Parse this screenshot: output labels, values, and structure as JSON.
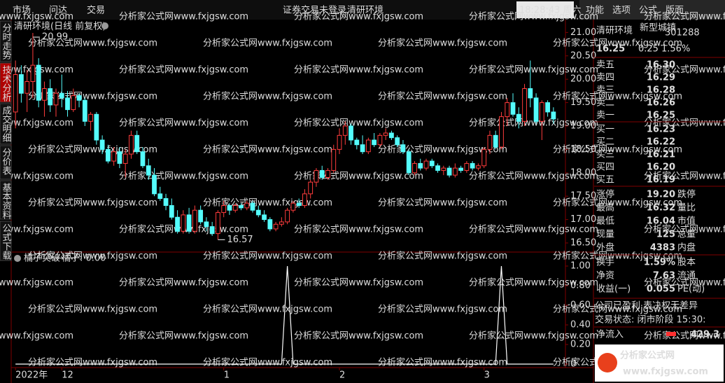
{
  "ui": {
    "menu_left": [
      "市场",
      "问达",
      "交易"
    ],
    "status": [
      "证券交易未登录",
      "清研环境"
    ],
    "clock": "18:28:43 周六",
    "menu_right": [
      "功能",
      "选项",
      "公式",
      "版面"
    ],
    "side_tabs": [
      "分时走势",
      "技术分析",
      "成交明细",
      "分价表",
      "基本资料",
      "公式下载"
    ],
    "watermark": "分析家公式网www.fxjgsw.com",
    "logo": {
      "name": "分析家公式网",
      "url": "www.fxjgsw.com"
    }
  },
  "quote": {
    "name": "清研环境",
    "sector": "新型城镇",
    "code": "301288",
    "price": "16.25",
    "change": "0.25",
    "pct": "1.56%",
    "asks": [
      {
        "label": "卖五",
        "price": "16.30"
      },
      {
        "label": "卖四",
        "price": "16.29"
      },
      {
        "label": "卖三",
        "price": "16.28"
      },
      {
        "label": "卖二",
        "price": "16.26"
      },
      {
        "label": "卖一",
        "price": "16.25"
      }
    ],
    "bids": [
      {
        "label": "买一",
        "price": "16.23"
      },
      {
        "label": "买二",
        "price": "16.22"
      },
      {
        "label": "买三",
        "price": "16.21"
      },
      {
        "label": "买四",
        "price": "16.20"
      },
      {
        "label": "买五",
        "price": "16.19"
      }
    ],
    "stats": [
      {
        "label": "涨停",
        "value": "19.20",
        "tail": "跌停",
        "color": "#ff4040"
      },
      {
        "label": "最高",
        "value": "16.32",
        "tail": "量比",
        "color": "#ff4040"
      },
      {
        "label": "最低",
        "value": "16.04",
        "tail": "市值",
        "color": "#ff4040"
      },
      {
        "label": "现量",
        "value": "125",
        "tail": "总量",
        "color": "#ffffff"
      },
      {
        "label": "外盘",
        "value": "4383",
        "tail": "内盘",
        "color": "#ff4040"
      },
      {
        "label": "换手",
        "value": "1.59%",
        "tail": "股本",
        "color": "#ffffff"
      },
      {
        "label": "净资",
        "value": "7.63",
        "tail": "流通",
        "color": "#ffffff"
      },
      {
        "label": "收益(一)",
        "value": "0.055",
        "tail": "PE(动)",
        "color": "#ffffff"
      }
    ],
    "notes": [
      "公司已盈利 表决权无差异",
      "交易状态: 闭市阶段 15:30:"
    ],
    "flow": {
      "label": "净流入",
      "value": "429.3"
    }
  },
  "chart_data": [
    {
      "type": "candlestick",
      "title": "清研环境(日线 前复权)",
      "color_up": "#ff3c3c",
      "color_down": "#54fcfc",
      "categories": [
        "2022年",
        null,
        null,
        null,
        null,
        null,
        null,
        null,
        "12",
        null,
        null,
        null,
        null,
        null,
        null,
        null,
        null,
        null,
        null,
        null,
        null,
        null,
        null,
        null,
        null,
        null,
        null,
        null,
        null,
        null,
        null,
        null,
        null,
        null,
        null,
        null,
        "1",
        null,
        null,
        null,
        null,
        null,
        null,
        null,
        null,
        null,
        null,
        null,
        null,
        null,
        null,
        null,
        null,
        null,
        null,
        null,
        "2",
        null,
        null,
        null,
        null,
        null,
        null,
        null,
        null,
        null,
        null,
        null,
        null,
        null,
        null,
        null,
        null,
        null,
        null,
        null,
        null,
        null,
        null,
        null,
        null,
        "3",
        null,
        null,
        null,
        null,
        null,
        null,
        null,
        null,
        null,
        null,
        null,
        null
      ],
      "ohlc": [
        [
          19.3,
          20.4,
          18.95,
          20.1
        ],
        [
          20.1,
          20.3,
          19.5,
          19.7
        ],
        [
          19.7,
          20.2,
          19.3,
          19.95
        ],
        [
          19.95,
          20.99,
          19.6,
          20.3
        ],
        [
          20.3,
          20.45,
          19.4,
          19.55
        ],
        [
          19.55,
          19.95,
          19.2,
          19.8
        ],
        [
          19.8,
          20.0,
          19.3,
          19.45
        ],
        [
          19.45,
          19.8,
          19.2,
          19.7
        ],
        [
          19.7,
          20.1,
          19.4,
          19.6
        ],
        [
          19.6,
          19.75,
          19.2,
          19.35
        ],
        [
          19.35,
          19.8,
          19.3,
          19.65
        ],
        [
          19.65,
          19.7,
          19.4,
          19.55
        ],
        [
          19.55,
          19.6,
          19.0,
          19.1
        ],
        [
          19.1,
          19.3,
          18.9,
          19.25
        ],
        [
          19.25,
          19.3,
          18.6,
          18.7
        ],
        [
          18.7,
          18.8,
          18.4,
          18.5
        ],
        [
          18.5,
          18.6,
          18.2,
          18.25
        ],
        [
          18.25,
          18.55,
          18.15,
          18.45
        ],
        [
          18.45,
          18.55,
          18.1,
          18.2
        ],
        [
          18.2,
          18.5,
          17.9,
          18.4
        ],
        [
          18.4,
          18.9,
          18.3,
          18.8
        ],
        [
          18.8,
          18.9,
          18.4,
          18.45
        ],
        [
          18.45,
          18.55,
          18.1,
          18.15
        ],
        [
          18.15,
          18.3,
          17.85,
          17.95
        ],
        [
          17.95,
          18.1,
          17.5,
          17.55
        ],
        [
          17.55,
          17.7,
          17.4,
          17.45
        ],
        [
          17.45,
          17.55,
          17.2,
          17.3
        ],
        [
          17.3,
          17.45,
          17.0,
          17.05
        ],
        [
          17.05,
          17.2,
          16.7,
          16.75
        ],
        [
          16.75,
          17.2,
          16.7,
          17.1
        ],
        [
          17.1,
          17.25,
          16.7,
          16.75
        ],
        [
          16.75,
          17.3,
          16.7,
          17.2
        ],
        [
          17.2,
          17.3,
          16.9,
          16.95
        ],
        [
          16.95,
          17.05,
          16.75,
          16.85
        ],
        [
          16.85,
          16.95,
          16.65,
          16.7
        ],
        [
          16.7,
          17.2,
          16.57,
          17.15
        ],
        [
          17.15,
          17.4,
          17.05,
          17.3
        ],
        [
          17.3,
          17.35,
          17.1,
          17.2
        ],
        [
          17.2,
          17.35,
          17.15,
          17.3
        ],
        [
          17.3,
          17.35,
          17.2,
          17.25
        ],
        [
          17.25,
          17.4,
          17.2,
          17.35
        ],
        [
          17.35,
          17.4,
          17.15,
          17.2
        ],
        [
          17.2,
          17.3,
          17.05,
          17.1
        ],
        [
          17.1,
          17.2,
          16.95,
          17.0
        ],
        [
          17.0,
          17.05,
          16.75,
          16.8
        ],
        [
          16.8,
          16.95,
          16.75,
          16.9
        ],
        [
          16.9,
          17.05,
          16.85,
          16.95
        ],
        [
          16.95,
          17.25,
          16.9,
          17.2
        ],
        [
          17.2,
          17.4,
          17.15,
          17.35
        ],
        [
          17.35,
          17.45,
          17.25,
          17.3
        ],
        [
          17.3,
          17.65,
          17.25,
          17.55
        ],
        [
          17.55,
          17.85,
          17.45,
          17.8
        ],
        [
          17.8,
          18.1,
          17.7,
          18.05
        ],
        [
          18.05,
          18.15,
          17.85,
          17.9
        ],
        [
          17.9,
          18.1,
          17.85,
          18.05
        ],
        [
          18.05,
          18.6,
          18.0,
          18.5
        ],
        [
          18.5,
          18.95,
          18.4,
          18.8
        ],
        [
          18.8,
          19.1,
          18.6,
          19.0
        ],
        [
          19.0,
          19.05,
          18.6,
          18.7
        ],
        [
          18.7,
          18.75,
          18.5,
          18.6
        ],
        [
          18.6,
          18.8,
          18.4,
          18.45
        ],
        [
          18.45,
          18.75,
          18.4,
          18.7
        ],
        [
          18.7,
          18.85,
          18.55,
          18.6
        ],
        [
          18.6,
          18.85,
          18.55,
          18.8
        ],
        [
          18.8,
          18.95,
          18.7,
          18.85
        ],
        [
          18.85,
          18.9,
          18.7,
          18.75
        ],
        [
          18.75,
          18.8,
          18.55,
          18.6
        ],
        [
          18.6,
          18.7,
          18.4,
          18.45
        ],
        [
          18.45,
          18.5,
          17.95,
          18.0
        ],
        [
          18.0,
          18.25,
          17.95,
          18.2
        ],
        [
          18.2,
          18.3,
          18.05,
          18.1
        ],
        [
          18.1,
          18.3,
          18.05,
          18.25
        ],
        [
          18.25,
          18.3,
          18.1,
          18.15
        ],
        [
          18.15,
          18.2,
          18.0,
          18.05
        ],
        [
          18.05,
          18.15,
          17.95,
          18.1
        ],
        [
          18.1,
          18.15,
          17.9,
          17.95
        ],
        [
          17.95,
          18.2,
          17.9,
          18.1
        ],
        [
          18.1,
          18.15,
          18.0,
          18.05
        ],
        [
          18.05,
          18.25,
          18.0,
          18.2
        ],
        [
          18.2,
          18.25,
          18.05,
          18.1
        ],
        [
          18.1,
          18.2,
          18.05,
          18.15
        ],
        [
          18.15,
          18.55,
          18.1,
          18.5
        ],
        [
          18.5,
          18.9,
          18.4,
          18.8
        ],
        [
          18.8,
          18.9,
          18.5,
          18.55
        ],
        [
          18.55,
          19.3,
          18.5,
          19.2
        ],
        [
          19.2,
          19.6,
          19.0,
          19.5
        ],
        [
          19.5,
          19.7,
          19.2,
          19.25
        ],
        [
          19.25,
          19.4,
          18.95,
          19.1
        ],
        [
          19.1,
          19.9,
          19.0,
          19.8
        ],
        [
          19.8,
          20.4,
          19.4,
          19.6
        ],
        [
          19.6,
          19.7,
          19.05,
          19.1
        ],
        [
          19.1,
          19.55,
          18.7,
          19.5
        ],
        [
          19.5,
          19.55,
          19.2,
          19.3
        ],
        [
          19.3,
          19.4,
          19.05,
          19.15
        ]
      ],
      "ylim": [
        16.35,
        21.2
      ],
      "yticks": [
        {
          "value": 21,
          "label": "21.00"
        },
        {
          "value": 20.5,
          "label": "20.50"
        },
        {
          "value": 20,
          "label": "20.00"
        },
        {
          "value": 19.5,
          "label": "19.50"
        },
        {
          "value": 19,
          "label": "19.00"
        },
        {
          "value": 18.5,
          "label": "18.50"
        },
        {
          "value": 18,
          "label": "18.00"
        },
        {
          "value": 17.5,
          "label": "17.50"
        },
        {
          "value": 17,
          "label": "17.00"
        },
        {
          "value": 16.5,
          "label": "16.50"
        }
      ],
      "annotations": [
        {
          "value": 20.99,
          "label": "20.99"
        },
        {
          "value": 16.57,
          "label": "16.57"
        }
      ]
    },
    {
      "type": "line",
      "title": "橘子突破",
      "readout": "橘子: 0.00",
      "color": "#ffffff",
      "values": [
        0,
        0,
        0,
        0,
        0,
        0,
        0,
        0,
        0,
        0,
        0,
        0,
        0,
        0,
        0,
        0,
        0,
        0,
        0,
        0,
        0,
        0,
        0,
        0,
        0,
        0,
        0,
        0,
        0,
        0,
        0,
        0,
        0,
        0,
        0,
        0,
        0,
        0,
        0,
        0,
        0,
        0,
        0,
        0,
        0,
        0,
        0,
        1,
        0,
        0,
        0,
        0,
        0,
        0,
        0,
        0,
        0,
        0,
        0,
        0,
        0,
        0,
        0,
        0,
        0,
        0,
        0,
        0,
        0,
        0,
        0,
        0,
        0,
        0,
        0,
        0,
        0,
        0,
        0,
        0,
        0,
        0,
        0,
        0,
        1,
        0,
        0,
        0,
        0,
        0,
        0,
        0,
        0,
        0
      ],
      "ylim": [
        0,
        1
      ],
      "yticks": [
        {
          "value": 1,
          "label": "1.00"
        },
        {
          "value": 0.8,
          "label": "0.80"
        },
        {
          "value": 0.6,
          "label": "0.60"
        },
        {
          "value": 0.4,
          "label": "0.40"
        },
        {
          "value": 0.2,
          "label": "0.20"
        },
        0
      ]
    }
  ]
}
